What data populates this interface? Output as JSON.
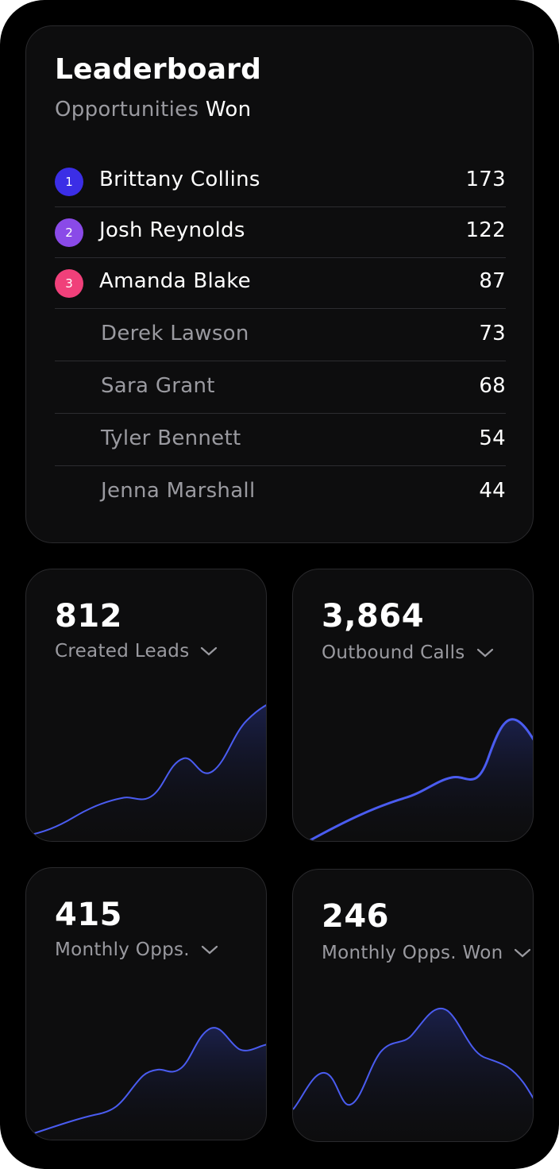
{
  "leaderboard": {
    "title": "Leaderboard",
    "subtitle_prefix": "Opportunities",
    "subtitle_suffix": "Won",
    "rows": [
      {
        "rank": "1",
        "name": "Brittany Collins",
        "value": "173",
        "badge_color": "#3b2ee6"
      },
      {
        "rank": "2",
        "name": "Josh Reynolds",
        "value": "122",
        "badge_color": "#8a4ae8"
      },
      {
        "rank": "3",
        "name": "Amanda Blake",
        "value": "87",
        "badge_color": "#f0407a"
      },
      {
        "name": "Derek Lawson",
        "value": "73"
      },
      {
        "name": "Sara Grant",
        "value": "68"
      },
      {
        "name": "Tyler Bennett",
        "value": "54"
      },
      {
        "name": "Jenna Marshall",
        "value": "44"
      }
    ]
  },
  "stats": [
    {
      "value": "812",
      "label": "Created Leads",
      "icon": "chevron-down-icon"
    },
    {
      "value": "3,864",
      "label": "Outbound Calls",
      "icon": "chevron-down-icon"
    },
    {
      "value": "415",
      "label": "Monthly Opps.",
      "icon": "chevron-down-icon"
    },
    {
      "value": "246",
      "label": "Monthly Opps. Won",
      "icon": "chevron-down-icon"
    }
  ],
  "colors": {
    "accent_line": "#4a5cf0",
    "card_bg": "#0d0d0e",
    "muted_text": "#9a9aa0"
  }
}
